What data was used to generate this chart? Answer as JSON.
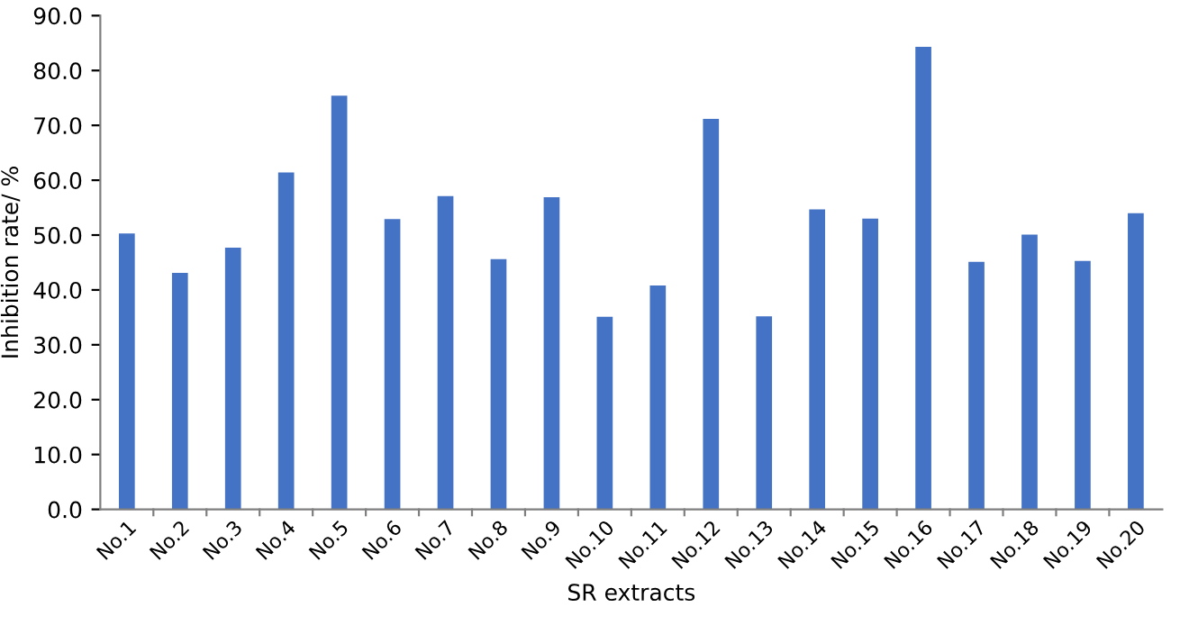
{
  "chart_data": {
    "type": "bar",
    "xlabel": "SR extracts",
    "ylabel": "Inhibition rate/ %",
    "categories": [
      "No.1",
      "No.2",
      "No.3",
      "No.4",
      "No.5",
      "No.6",
      "No.7",
      "No.8",
      "No.9",
      "No.10",
      "No.11",
      "No.12",
      "No.13",
      "No.14",
      "No.15",
      "No.16",
      "No.17",
      "No.18",
      "No.19",
      "No.20"
    ],
    "values": [
      50.3,
      43.1,
      47.7,
      61.4,
      75.4,
      52.9,
      57.1,
      45.6,
      56.9,
      35.1,
      40.8,
      71.2,
      35.2,
      54.7,
      53.0,
      84.3,
      45.1,
      50.1,
      45.3,
      54.0
    ],
    "color": "#4472c4",
    "ylim": [
      0,
      90
    ],
    "yticks": [
      {
        "value": 0,
        "label": "0.0"
      },
      {
        "value": 10,
        "label": "10.0"
      },
      {
        "value": 20,
        "label": "20.0"
      },
      {
        "value": 30,
        "label": "30.0"
      },
      {
        "value": 40,
        "label": "40.0"
      },
      {
        "value": 50,
        "label": "50.0"
      },
      {
        "value": 60,
        "label": "60.0"
      },
      {
        "value": 70,
        "label": "70.0"
      },
      {
        "value": 80,
        "label": "80.0"
      },
      {
        "value": 90,
        "label": "90.0"
      }
    ],
    "grid": false,
    "legend": false
  }
}
